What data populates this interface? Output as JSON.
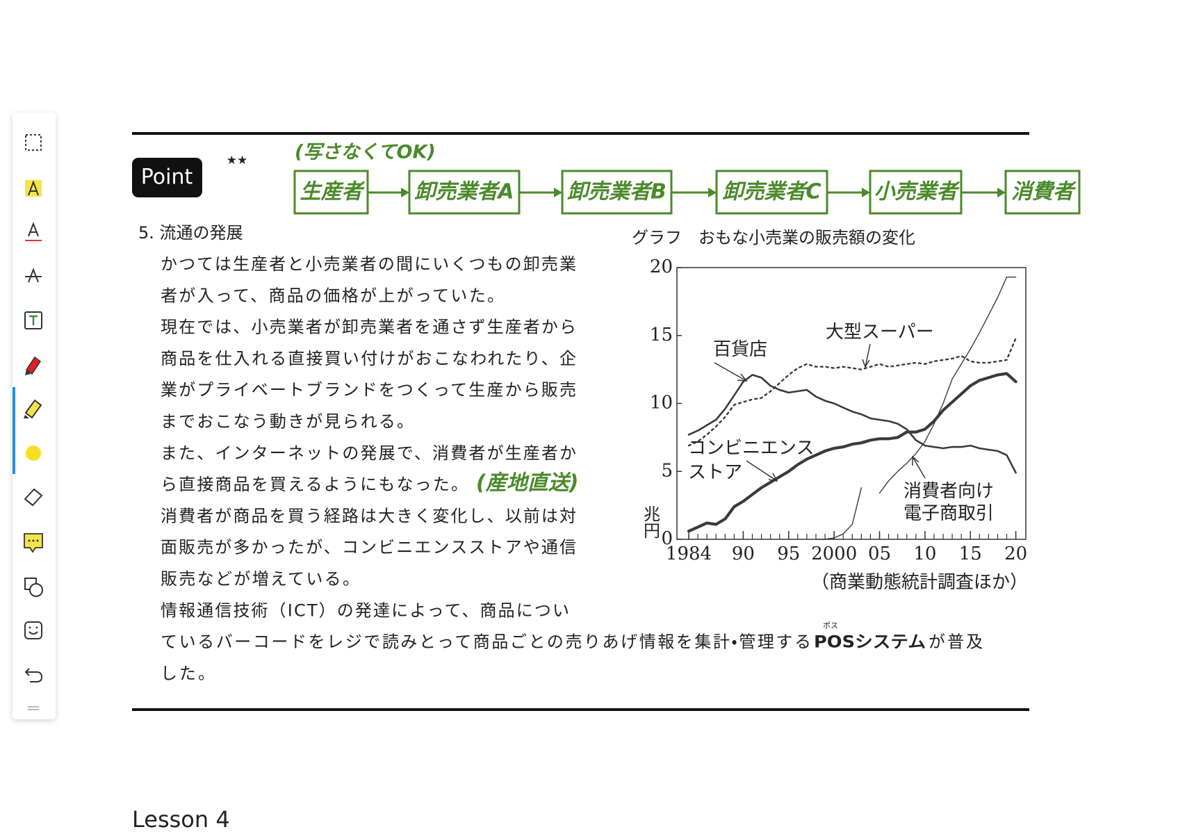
{
  "point": {
    "badge": "Point",
    "stars": "★★"
  },
  "flow": {
    "note": "(写さなくてOK)",
    "steps": [
      "生産者",
      "卸売業者A",
      "卸売業者B",
      "卸売業者C",
      "小売業者",
      "消費者"
    ]
  },
  "section": {
    "heading": "5. 流通の発展",
    "lines": [
      "かつては生産者と小売業者の間にいくつもの卸売業",
      "者が入って、商品の価格が上がっていた。",
      "現在では、小売業者が卸売業者を通さず生産者から",
      "商品を仕入れる直接買い付けがおこなわれたり、企",
      "業がプライベートブランドをつくって生産から販売",
      "までおこなう動きが見られる。",
      "また、インターネットの発展で、消費者が生産者か",
      "ら直接商品を買えるようにもなった。",
      "消費者が商品を買う経路は大きく変化し、以前は対",
      "面販売が多かったが、コンビニエンスストアや通信",
      "販売などが増えている。",
      "情報通信技術（ICT）の発達によって、商品につい"
    ],
    "annotation": "(産地直送)",
    "pos_line": {
      "before": "ているバーコードをレジで読みとって商品ごとの売りあげ情報を集計・管理する",
      "term": "POSシステム",
      "ruby": "ポス",
      "after": "が普及"
    },
    "last_line": "した。"
  },
  "chart": {
    "type": "line",
    "title": "グラフ　おもな小売業の販売額の変化",
    "y_label": "兆円",
    "source": "（商業動態統計調査ほか）",
    "x": [
      1984,
      1985,
      1986,
      1987,
      1988,
      1989,
      1990,
      1991,
      1992,
      1993,
      1994,
      1995,
      1996,
      1997,
      1998,
      1999,
      2000,
      2001,
      2002,
      2003,
      2004,
      2005,
      2006,
      2007,
      2008,
      2009,
      2010,
      2011,
      2012,
      2013,
      2014,
      2015,
      2016,
      2017,
      2018,
      2019,
      2020
    ],
    "xlim": [
      1982.7,
      2021.1
    ],
    "xticks": [
      1984,
      {
        "value": 1990,
        "label": "90"
      },
      {
        "value": 1995,
        "label": "95"
      },
      2000,
      {
        "value": 2005,
        "label": "05"
      },
      {
        "value": 2010,
        "label": "10"
      },
      {
        "value": 2015,
        "label": "15"
      },
      {
        "value": 2020,
        "label": "20"
      }
    ],
    "ylim": [
      0,
      20
    ],
    "yticks": [
      0,
      5,
      10,
      15,
      20
    ],
    "series": [
      {
        "name_lines": [
          "百貨店"
        ],
        "color": "#3a3a3a",
        "style": "solid",
        "width": 2.6,
        "values": [
          7.7,
          8.0,
          8.4,
          8.8,
          9.6,
          10.6,
          11.6,
          12.1,
          11.9,
          11.3,
          11.0,
          10.8,
          10.9,
          11.0,
          10.5,
          10.2,
          10.0,
          9.7,
          9.4,
          9.2,
          8.9,
          8.8,
          8.7,
          8.5,
          8.1,
          7.3,
          6.9,
          6.8,
          6.7,
          6.8,
          6.8,
          6.9,
          6.7,
          6.6,
          6.5,
          6.2,
          4.9
        ]
      },
      {
        "name_lines": [
          "大型スーパー"
        ],
        "color": "#3a3a3a",
        "style": "dotted",
        "width": 2.4,
        "values": [
          6.9,
          7.2,
          7.7,
          8.3,
          9.0,
          9.9,
          10.1,
          10.3,
          10.4,
          10.9,
          11.5,
          12.1,
          12.6,
          12.9,
          12.7,
          12.7,
          12.6,
          12.7,
          12.6,
          12.5,
          12.7,
          12.9,
          12.7,
          12.8,
          12.9,
          13.0,
          12.9,
          13.1,
          13.2,
          13.3,
          13.5,
          13.1,
          13.0,
          13.0,
          13.1,
          13.2,
          14.8
        ]
      },
      {
        "name_lines": [
          "コンビニエンス",
          "ストア"
        ],
        "color": "#3a3a3a",
        "style": "solid",
        "width": 4.2,
        "values": [
          0.6,
          0.9,
          1.2,
          1.1,
          1.5,
          2.4,
          2.8,
          3.3,
          3.8,
          4.2,
          4.6,
          5.0,
          5.5,
          5.9,
          6.2,
          6.5,
          6.7,
          6.8,
          7.0,
          7.1,
          7.3,
          7.4,
          7.4,
          7.5,
          7.9,
          7.9,
          8.1,
          8.7,
          9.5,
          10.1,
          10.7,
          11.3,
          11.7,
          11.9,
          12.1,
          12.2,
          11.6
        ]
      },
      {
        "name_lines": [
          "消費者向け",
          "電子商取引"
        ],
        "color": "#3a3a3a",
        "style": "solid",
        "width": 1.4,
        "values": [
          null,
          null,
          null,
          null,
          null,
          null,
          null,
          null,
          null,
          null,
          null,
          null,
          null,
          null,
          0.0,
          0.0,
          0.1,
          0.4,
          1.1,
          3.8,
          null,
          3.4,
          4.3,
          5.0,
          5.6,
          6.3,
          7.2,
          8.5,
          10.0,
          11.8,
          12.9,
          14.0,
          15.2,
          16.5,
          17.8,
          19.3,
          19.3
        ]
      }
    ]
  },
  "footer": "Lesson 4"
}
